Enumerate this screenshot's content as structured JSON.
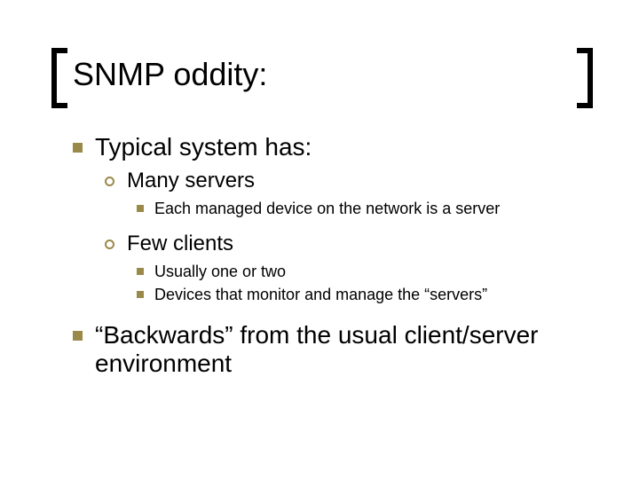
{
  "colors": {
    "bullet": "#9a8a4a",
    "text": "#000000",
    "background": "#ffffff",
    "bracket": "#000000"
  },
  "title": "SNMP oddity:",
  "items": [
    {
      "text": "Typical system has:",
      "children": [
        {
          "text": "Many servers",
          "children": [
            {
              "text": "Each managed device on the network is a server"
            }
          ]
        },
        {
          "text": "Few clients",
          "children": [
            {
              "text": "Usually one or two"
            },
            {
              "text": "Devices that monitor and manage the “servers”"
            }
          ]
        }
      ]
    },
    {
      "text": "“Backwards” from the usual client/server environment"
    }
  ]
}
